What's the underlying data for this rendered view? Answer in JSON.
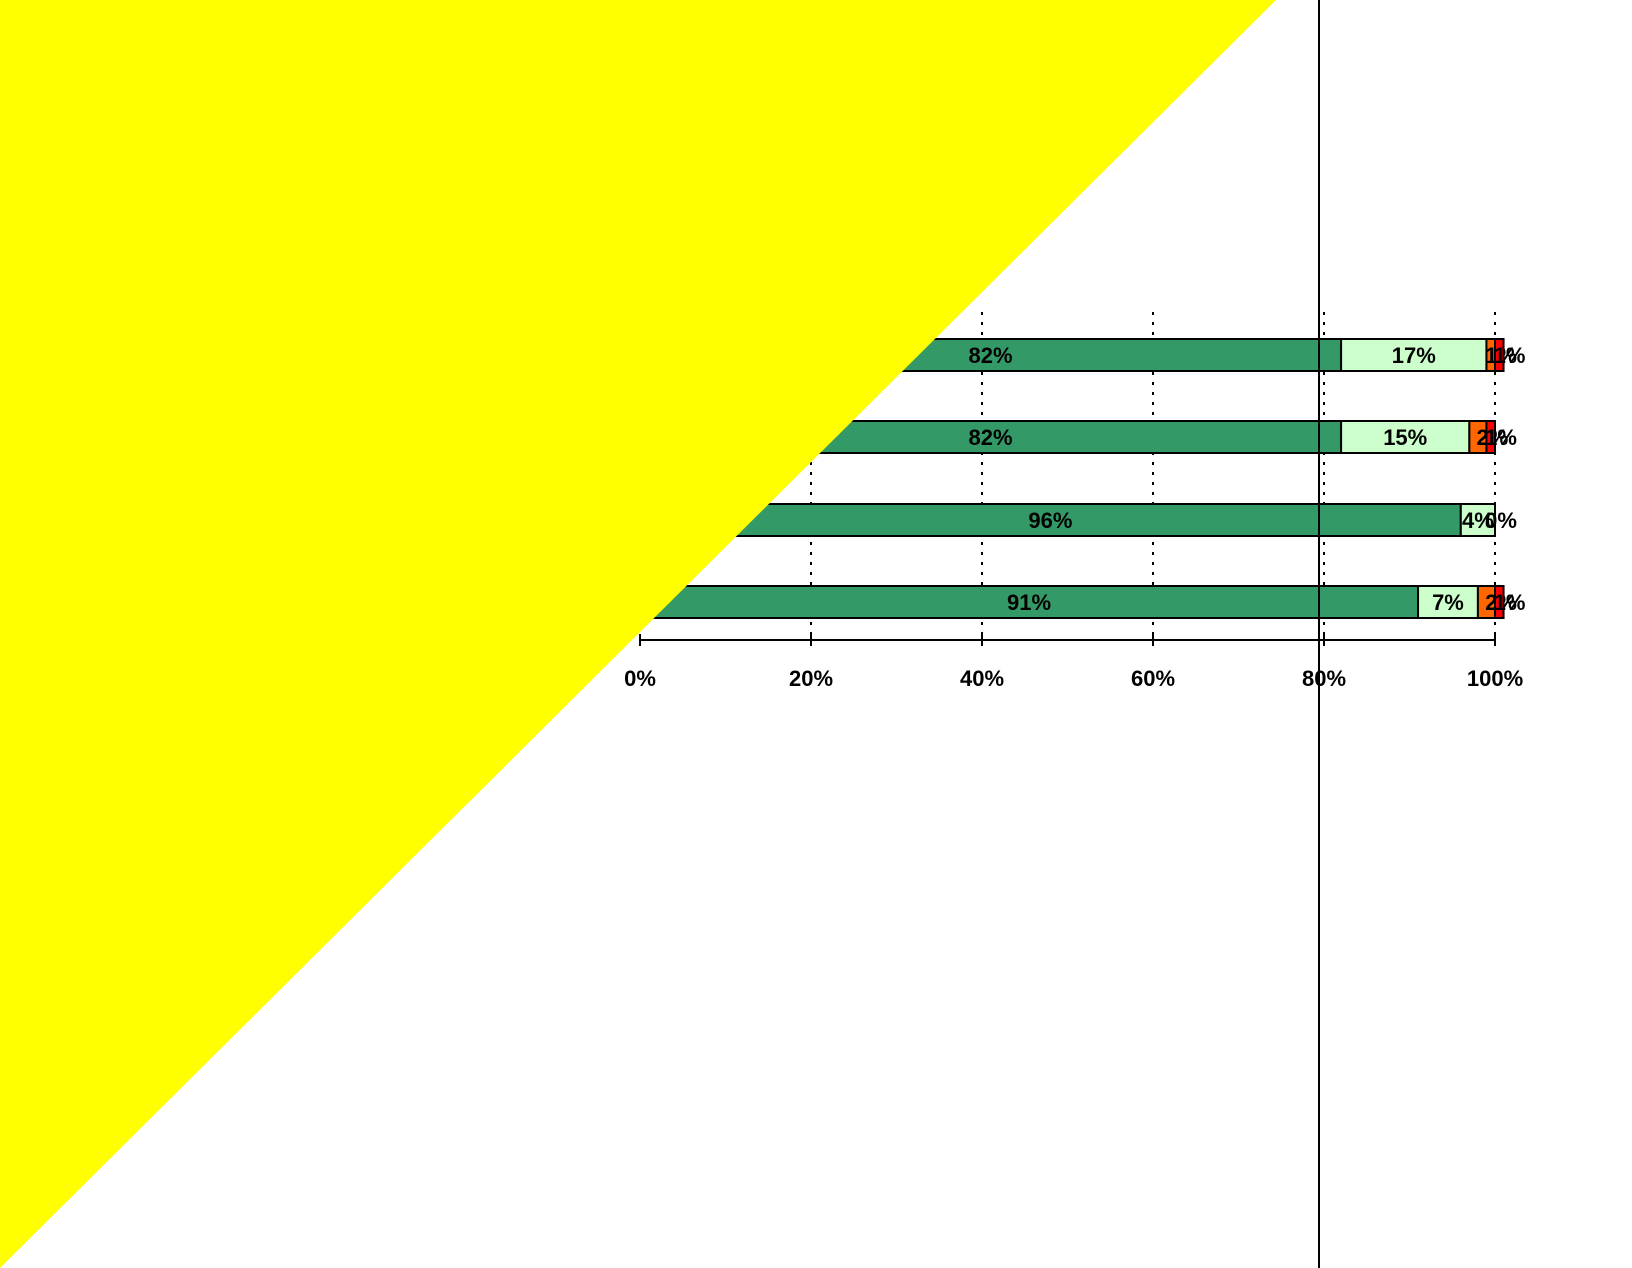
{
  "chart_data": {
    "type": "bar",
    "orientation": "horizontal",
    "stacked": true,
    "percent_stacked": true,
    "title": "",
    "xlabel": "",
    "ylabel": "",
    "xlim": [
      0,
      100
    ],
    "grid": "dotted vertical gridlines",
    "x_tick_labels": [
      "0%",
      "20%",
      "40%",
      "60%",
      "80%",
      "100%"
    ],
    "x_ticks": [
      0,
      20,
      40,
      60,
      80,
      100
    ],
    "series": [
      {
        "color": "#339966",
        "values": [
          82,
          82,
          96,
          91
        ],
        "labels": [
          "82%",
          "82%",
          "96%",
          "91%"
        ]
      },
      {
        "color": "#CCFFCC",
        "values": [
          17,
          15,
          4,
          7
        ],
        "labels": [
          "17%",
          "15%",
          "4%",
          "7%"
        ]
      },
      {
        "color": "#FF6600",
        "values": [
          1,
          2,
          0,
          2
        ],
        "labels": [
          "1%",
          "2%",
          "",
          "2%"
        ]
      },
      {
        "color": "#FF0000",
        "values": [
          1,
          1,
          0,
          1
        ],
        "labels": [
          "1%",
          "1%",
          "0%",
          "1%"
        ]
      }
    ]
  },
  "overlay": {
    "triangle_color": "#FFFF00",
    "marker_line_color": "#000000"
  }
}
